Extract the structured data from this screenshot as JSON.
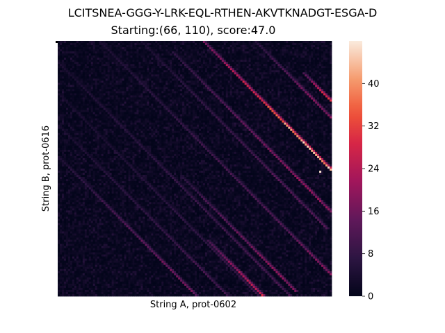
{
  "chart_data": {
    "type": "heatmap",
    "title": "LCITSNEA-GGG-Y-LRK-EQL-RTHEN-AKVTKNADGT-ESGA-D",
    "subtitle": "Starting:(66, 110), score:47.0",
    "xlabel": "String A, prot-0602",
    "ylabel": "String B, prot-0616",
    "x_ticks_shown": false,
    "y_ticks_shown": false,
    "colorbar": {
      "range": [
        0,
        48
      ],
      "ticks": [
        0,
        8,
        16,
        24,
        32,
        40
      ],
      "colormap": "rocket"
    },
    "grid_size": {
      "cols": 132,
      "rows": 122
    },
    "max_cell": {
      "x": 126,
      "y": 62,
      "value": 47.0
    },
    "diagonal_bands": [
      {
        "start_x": 0,
        "start_y": 10,
        "length": 120,
        "peak": 12
      },
      {
        "start_x": 0,
        "start_y": 25,
        "length": 110,
        "peak": 10
      },
      {
        "start_x": 0,
        "start_y": 40,
        "length": 95,
        "peak": 12
      },
      {
        "start_x": 0,
        "start_y": 55,
        "length": 70,
        "peak": 14
      },
      {
        "start_x": 5,
        "start_y": 60,
        "length": 60,
        "peak": 18
      },
      {
        "start_x": 15,
        "start_y": 70,
        "length": 50,
        "peak": 16
      },
      {
        "start_x": 20,
        "start_y": 0,
        "length": 110,
        "peak": 14
      },
      {
        "start_x": 40,
        "start_y": 0,
        "length": 90,
        "peak": 14
      },
      {
        "start_x": 55,
        "start_y": 5,
        "length": 77,
        "peak": 22
      },
      {
        "start_x": 70,
        "start_y": 0,
        "length": 62,
        "peak": 47
      },
      {
        "start_x": 80,
        "start_y": 10,
        "length": 52,
        "peak": 30
      },
      {
        "start_x": 95,
        "start_y": 0,
        "length": 37,
        "peak": 20
      },
      {
        "start_x": 60,
        "start_y": 65,
        "length": 55,
        "peak": 22
      },
      {
        "start_x": 72,
        "start_y": 95,
        "length": 27,
        "peak": 30
      },
      {
        "start_x": 100,
        "start_y": 80,
        "length": 32,
        "peak": 20
      },
      {
        "start_x": 118,
        "start_y": 15,
        "length": 14,
        "peak": 32
      }
    ],
    "colors": {
      "low": "#03051a",
      "high": "#faebdd"
    }
  }
}
